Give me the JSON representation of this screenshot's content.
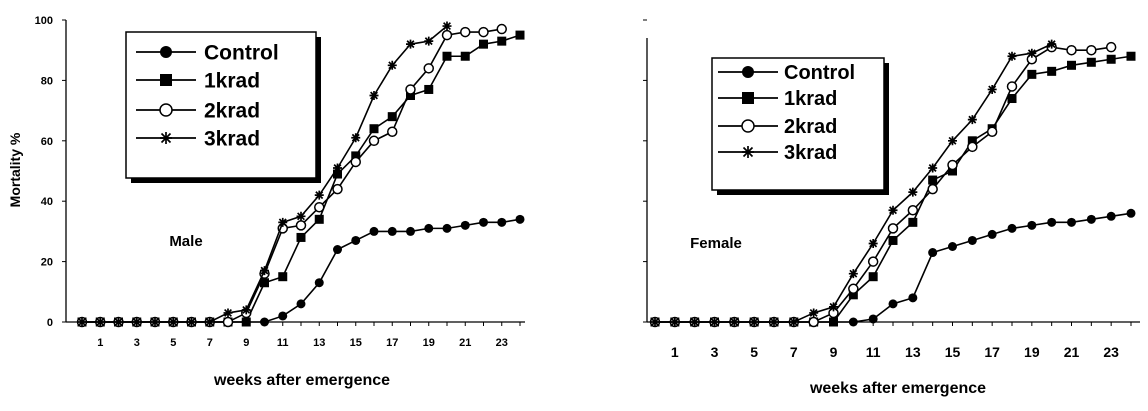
{
  "chart_data": [
    {
      "type": "line",
      "panel_label": "Male",
      "xlabel": "weeks after emergence",
      "ylabel": "Mortality %",
      "xlim": [
        0,
        24.5
      ],
      "ylim": [
        0,
        100
      ],
      "x_ticks": [
        1,
        3,
        5,
        7,
        9,
        11,
        13,
        15,
        17,
        19,
        21,
        23
      ],
      "y_ticks": [
        0,
        20,
        40,
        60,
        80,
        100
      ],
      "grid": false,
      "legend_placement": "top-left",
      "series": [
        {
          "name": "Control",
          "marker": "filled-circle",
          "x": [
            0,
            1,
            2,
            3,
            4,
            5,
            6,
            7,
            8,
            9,
            10,
            11,
            12,
            13,
            14,
            15,
            16,
            17,
            18,
            19,
            20,
            21,
            22,
            23,
            24
          ],
          "y": [
            0,
            0,
            0,
            0,
            0,
            0,
            0,
            0,
            0,
            0,
            0,
            2,
            6,
            13,
            24,
            27,
            30,
            30,
            30,
            31,
            31,
            32,
            33,
            33,
            34
          ]
        },
        {
          "name": "1krad",
          "marker": "filled-square",
          "x": [
            0,
            1,
            2,
            3,
            4,
            5,
            6,
            7,
            8,
            9,
            10,
            11,
            12,
            13,
            14,
            15,
            16,
            17,
            18,
            19,
            20,
            21,
            22,
            23,
            24
          ],
          "y": [
            0,
            0,
            0,
            0,
            0,
            0,
            0,
            0,
            0,
            0,
            13,
            15,
            28,
            34,
            49,
            55,
            64,
            68,
            75,
            77,
            88,
            88,
            92,
            93,
            95
          ]
        },
        {
          "name": "2krad",
          "marker": "open-circle",
          "x": [
            0,
            1,
            2,
            3,
            4,
            5,
            6,
            7,
            8,
            9,
            10,
            11,
            12,
            13,
            14,
            15,
            16,
            17,
            18,
            19,
            20,
            21,
            22,
            23
          ],
          "y": [
            0,
            0,
            0,
            0,
            0,
            0,
            0,
            0,
            0,
            3,
            16,
            31,
            32,
            38,
            44,
            53,
            60,
            63,
            77,
            84,
            95,
            96,
            96,
            97
          ]
        },
        {
          "name": "3krad",
          "marker": "star",
          "x": [
            0,
            1,
            2,
            3,
            4,
            5,
            6,
            7,
            8,
            9,
            10,
            11,
            12,
            13,
            14,
            15,
            16,
            17,
            18,
            19,
            20
          ],
          "y": [
            0,
            0,
            0,
            0,
            0,
            0,
            0,
            0,
            3,
            4,
            17,
            33,
            35,
            42,
            51,
            61,
            75,
            85,
            92,
            93,
            98
          ]
        }
      ]
    },
    {
      "type": "line",
      "panel_label": "Female",
      "xlabel": "weeks after emergence",
      "ylabel": "",
      "xlim": [
        0,
        24.5
      ],
      "ylim": [
        0,
        100
      ],
      "x_ticks": [
        1,
        3,
        5,
        7,
        9,
        11,
        13,
        15,
        17,
        19,
        21,
        23
      ],
      "y_ticks": [],
      "grid": false,
      "legend_placement": "top-left",
      "series": [
        {
          "name": "Control",
          "marker": "filled-circle",
          "x": [
            0,
            1,
            2,
            3,
            4,
            5,
            6,
            7,
            8,
            9,
            10,
            11,
            12,
            13,
            14,
            15,
            16,
            17,
            18,
            19,
            20,
            21,
            22,
            23,
            24
          ],
          "y": [
            0,
            0,
            0,
            0,
            0,
            0,
            0,
            0,
            0,
            0,
            0,
            1,
            6,
            8,
            23,
            25,
            27,
            29,
            31,
            32,
            33,
            33,
            34,
            35,
            36
          ]
        },
        {
          "name": "1krad",
          "marker": "filled-square",
          "x": [
            0,
            1,
            2,
            3,
            4,
            5,
            6,
            7,
            8,
            9,
            10,
            11,
            12,
            13,
            14,
            15,
            16,
            17,
            18,
            19,
            20,
            21,
            22,
            23,
            24
          ],
          "y": [
            0,
            0,
            0,
            0,
            0,
            0,
            0,
            0,
            0,
            0,
            9,
            15,
            27,
            33,
            47,
            50,
            60,
            64,
            74,
            82,
            83,
            85,
            86,
            87,
            88
          ]
        },
        {
          "name": "2krad",
          "marker": "open-circle",
          "x": [
            0,
            1,
            2,
            3,
            4,
            5,
            6,
            7,
            8,
            9,
            10,
            11,
            12,
            13,
            14,
            15,
            16,
            17,
            18,
            19,
            20,
            21,
            22,
            23
          ],
          "y": [
            0,
            0,
            0,
            0,
            0,
            0,
            0,
            0,
            0,
            3,
            11,
            20,
            31,
            37,
            44,
            52,
            58,
            63,
            78,
            87,
            91,
            90,
            90,
            91
          ]
        },
        {
          "name": "3krad",
          "marker": "star",
          "x": [
            0,
            1,
            2,
            3,
            4,
            5,
            6,
            7,
            8,
            9,
            10,
            11,
            12,
            13,
            14,
            15,
            16,
            17,
            18,
            19,
            20
          ],
          "y": [
            0,
            0,
            0,
            0,
            0,
            0,
            0,
            0,
            3,
            5,
            16,
            26,
            37,
            43,
            51,
            60,
            67,
            77,
            88,
            89,
            92
          ]
        }
      ]
    }
  ]
}
